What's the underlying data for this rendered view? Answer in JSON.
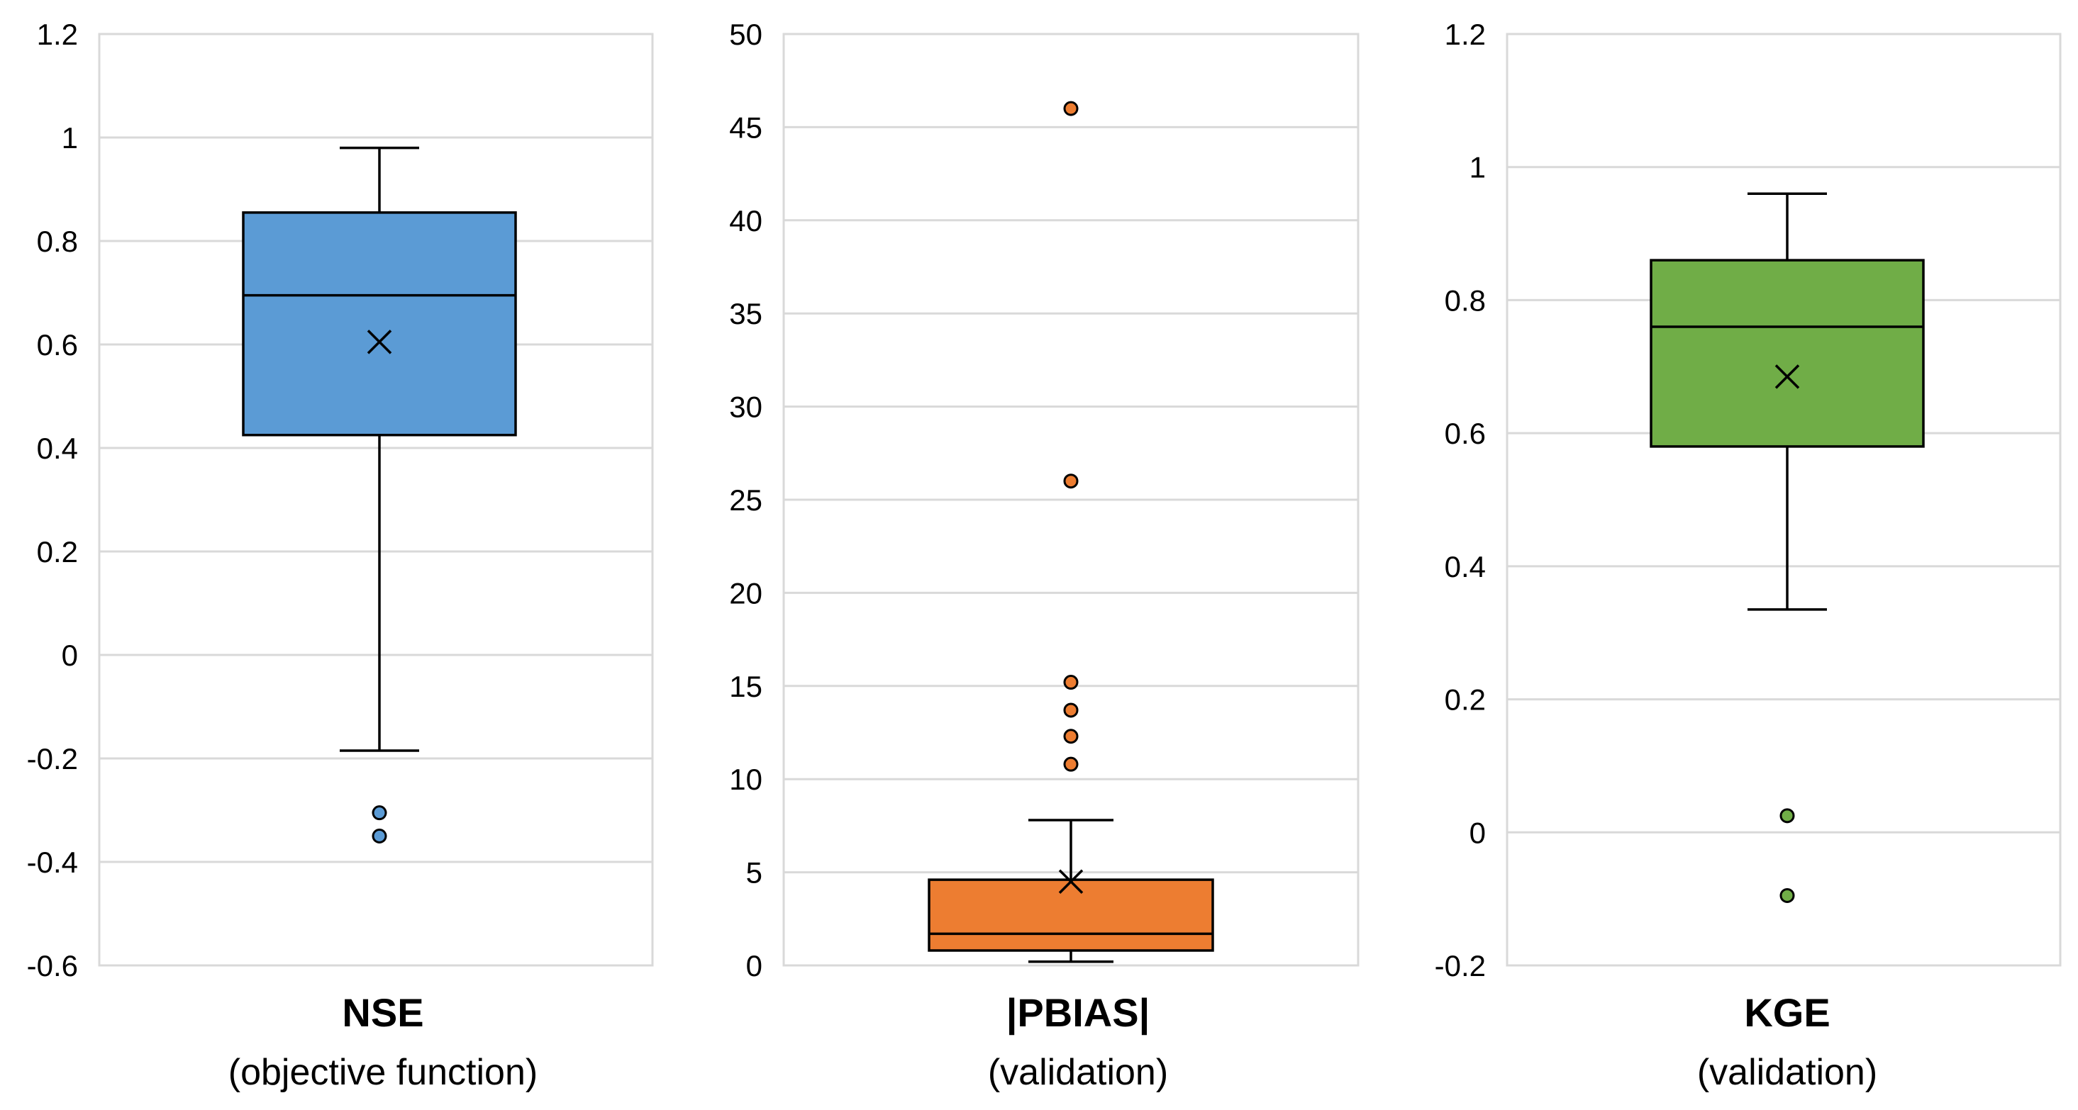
{
  "chart_data": [
    {
      "type": "box",
      "title": "NSE",
      "subtitle": "(objective function)",
      "ylim": [
        -0.6,
        1.2
      ],
      "yticks": [
        -0.6,
        -0.4,
        -0.2,
        0,
        0.2,
        0.4,
        0.6,
        0.8,
        1,
        1.2
      ],
      "ytick_labels": [
        "-0.6",
        "-0.4",
        "-0.2",
        "0",
        "0.2",
        "0.4",
        "0.6",
        "0.8",
        "1",
        "1.2"
      ],
      "color": "#5B9BD5",
      "whisker_low": -0.185,
      "q1": 0.425,
      "median": 0.695,
      "q3": 0.855,
      "whisker_high": 0.98,
      "mean": 0.605,
      "outliers": [
        -0.305,
        -0.35
      ]
    },
    {
      "type": "box",
      "title": "|PBIAS|",
      "subtitle": "(validation)",
      "ylim": [
        0,
        50
      ],
      "yticks": [
        0,
        5,
        10,
        15,
        20,
        25,
        30,
        35,
        40,
        45,
        50
      ],
      "ytick_labels": [
        "0",
        "5",
        "10",
        "15",
        "20",
        "25",
        "30",
        "35",
        "40",
        "45",
        "50"
      ],
      "color": "#ED7D31",
      "whisker_low": 0.2,
      "q1": 0.8,
      "median": 1.7,
      "q3": 4.6,
      "whisker_high": 7.8,
      "mean": 4.5,
      "outliers": [
        46.0,
        26.0,
        15.2,
        13.7,
        12.3,
        10.8
      ]
    },
    {
      "type": "box",
      "title": "KGE",
      "subtitle": "(validation)",
      "ylim": [
        -0.2,
        1.2
      ],
      "yticks": [
        -0.2,
        0,
        0.2,
        0.4,
        0.6,
        0.8,
        1,
        1.2
      ],
      "ytick_labels": [
        "-0.2",
        "0",
        "0.2",
        "0.4",
        "0.6",
        "0.8",
        "1",
        "1.2"
      ],
      "color": "#70AD47",
      "whisker_low": 0.335,
      "q1": 0.58,
      "median": 0.76,
      "q3": 0.86,
      "whisker_high": 0.96,
      "mean": 0.685,
      "outliers": [
        0.025,
        -0.095
      ]
    }
  ]
}
